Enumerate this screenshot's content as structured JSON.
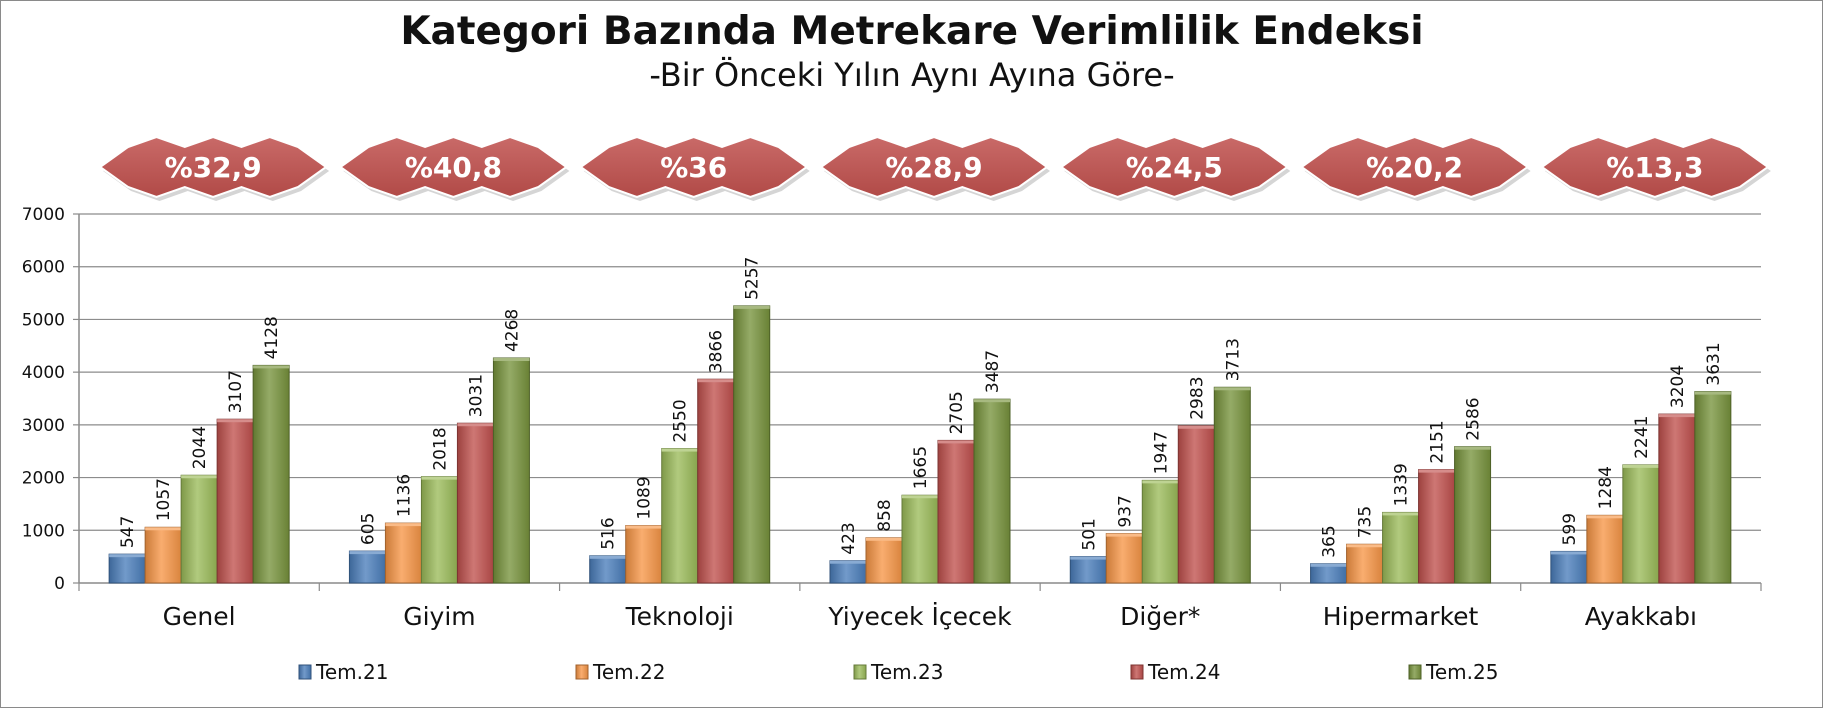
{
  "chart_data": {
    "type": "bar",
    "title": "Kategori Bazında Metrekare Verimlilik Endeksi",
    "subtitle": "-Bir Önceki Yılın Aynı Ayına Göre-",
    "categories": [
      "Genel",
      "Giyim",
      "Teknoloji",
      "Yiyecek İçecek",
      "Diğer*",
      "Hipermarket",
      "Ayakkabı"
    ],
    "badges": [
      "%32,9",
      "%40,8",
      "%36",
      "%28,9",
      "%24,5",
      "%20,2",
      "%13,3"
    ],
    "series": [
      {
        "name": "Tem.21",
        "values": [
          547,
          605,
          516,
          423,
          501,
          365,
          599
        ]
      },
      {
        "name": "Tem.22",
        "values": [
          1057,
          1136,
          1089,
          858,
          937,
          735,
          1284
        ]
      },
      {
        "name": "Tem.23",
        "values": [
          2044,
          2018,
          2550,
          1665,
          1947,
          1339,
          2241
        ]
      },
      {
        "name": "Tem.24",
        "values": [
          3107,
          3031,
          3866,
          2705,
          2983,
          2151,
          3204
        ]
      },
      {
        "name": "Tem.25",
        "values": [
          4128,
          4268,
          5257,
          3487,
          3713,
          2586,
          3631
        ]
      }
    ],
    "ylim": [
      0,
      7000
    ],
    "yticks": [
      "0",
      "1000",
      "2000",
      "3000",
      "4000",
      "5000",
      "6000",
      "7000"
    ],
    "grid": true,
    "legend_position": "bottom",
    "colors": [
      "#4a7ebb",
      "#f79646",
      "#9bbb59",
      "#c0504d",
      "#77933c"
    ],
    "badge_color": "#c0504d"
  }
}
